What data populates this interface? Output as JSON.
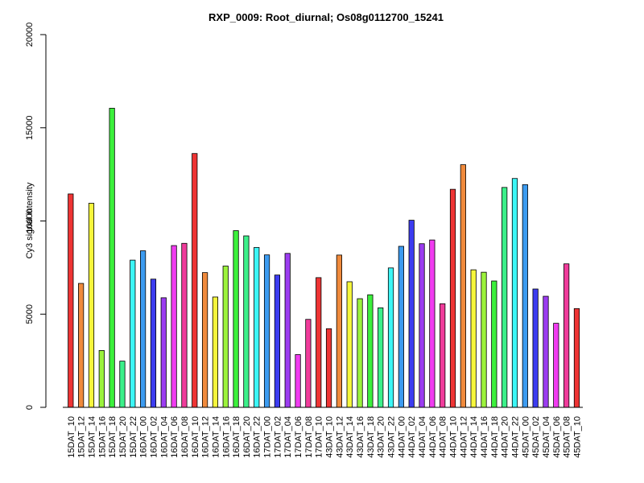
{
  "chart_data": {
    "type": "bar",
    "title": "RXP_0009: Root_diurnal; Os08g0112700_15241",
    "xlabel": "",
    "ylabel": "Cy3 signal intensity",
    "ylim": [
      0,
      20000
    ],
    "yticks": [
      0,
      5000,
      10000,
      15000,
      20000
    ],
    "grid": false,
    "legend": "none",
    "categories": [
      "15DAT_10",
      "15DAT_12",
      "15DAT_14",
      "15DAT_16",
      "15DAT_18",
      "15DAT_20",
      "15DAT_22",
      "16DAT_00",
      "16DAT_02",
      "16DAT_04",
      "16DAT_06",
      "16DAT_08",
      "16DAT_10",
      "16DAT_12",
      "16DAT_14",
      "16DAT_16",
      "16DAT_18",
      "16DAT_20",
      "16DAT_22",
      "17DAT_00",
      "17DAT_02",
      "17DAT_04",
      "17DAT_06",
      "17DAT_08",
      "17DAT_10",
      "43DAT_10",
      "43DAT_12",
      "43DAT_14",
      "43DAT_16",
      "43DAT_18",
      "43DAT_20",
      "43DAT_22",
      "44DAT_00",
      "44DAT_02",
      "44DAT_04",
      "44DAT_06",
      "44DAT_08",
      "44DAT_10",
      "44DAT_12",
      "44DAT_14",
      "44DAT_16",
      "44DAT_18",
      "44DAT_20",
      "44DAT_22",
      "45DAT_00",
      "45DAT_02",
      "45DAT_04",
      "45DAT_06",
      "45DAT_08",
      "45DAT_10"
    ],
    "values": [
      11450,
      6650,
      10950,
      3050,
      16050,
      2480,
      7900,
      8400,
      6880,
      5880,
      8680,
      8800,
      13620,
      7230,
      5920,
      7580,
      9480,
      9200,
      8580,
      8180,
      7100,
      8260,
      2830,
      4720,
      6960,
      4220,
      8170,
      6740,
      5830,
      6040,
      5340,
      7480,
      8640,
      10040,
      8780,
      8980,
      5560,
      11700,
      13020,
      7380,
      7250,
      6780,
      11800,
      12280,
      11950,
      6350,
      5960,
      4510,
      7700,
      5300
    ],
    "colors": [
      "#ee3434",
      "#f08a3c",
      "#f6f63c",
      "#9bf23c",
      "#3cf03c",
      "#3cf08a",
      "#3cf6f6",
      "#3c9bf0",
      "#3c3cf0",
      "#9b3cf0",
      "#f03cf0",
      "#f03c9b",
      "#ee3434",
      "#f08a3c",
      "#f6f63c",
      "#9bf23c",
      "#3cf03c",
      "#3cf08a",
      "#3cf6f6",
      "#3c9bf0",
      "#3c3cf0",
      "#9b3cf0",
      "#f03cf0",
      "#f03c9b",
      "#ee3434",
      "#ee3434",
      "#f08a3c",
      "#f6f63c",
      "#9bf23c",
      "#3cf03c",
      "#3cf08a",
      "#3cf6f6",
      "#3c9bf0",
      "#3c3cf0",
      "#9b3cf0",
      "#f03cf0",
      "#f03c9b",
      "#ee3434",
      "#f08a3c",
      "#f6f63c",
      "#9bf23c",
      "#3cf03c",
      "#3cf08a",
      "#3cf6f6",
      "#3c9bf0",
      "#3c3cf0",
      "#9b3cf0",
      "#f03cf0",
      "#f03c9b",
      "#ee3434"
    ]
  }
}
